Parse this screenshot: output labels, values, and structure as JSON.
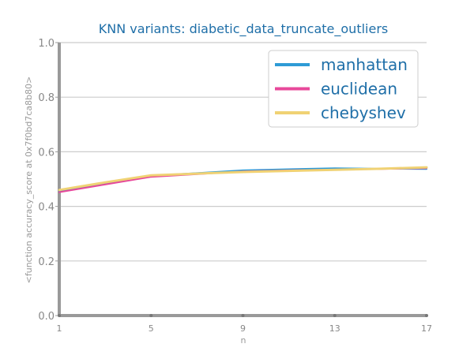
{
  "chart_data": {
    "type": "line",
    "title": "KNN variants: diabetic_data_truncate_outliers",
    "xlabel": "n",
    "ylabel": "<function accuracy_score at 0x7f0bd7ca8b80>",
    "x": [
      1,
      3,
      5,
      7,
      9,
      11,
      13,
      15,
      17
    ],
    "xticks": [
      "1",
      "5",
      "9",
      "13",
      "17"
    ],
    "yticks": [
      "0.0",
      "0.2",
      "0.4",
      "0.6",
      "0.8",
      "1.0"
    ],
    "xlim": [
      1,
      17
    ],
    "ylim": [
      0,
      1
    ],
    "grid": "horizontal",
    "legend_position": "top-right",
    "series": [
      {
        "name": "manhattan",
        "color": "#2e9bd6",
        "values": [
          0.455,
          0.485,
          0.512,
          0.522,
          0.532,
          0.536,
          0.54,
          0.538,
          0.537
        ]
      },
      {
        "name": "euclidean",
        "color": "#e8489a",
        "values": [
          0.452,
          0.48,
          0.508,
          0.518,
          0.528,
          0.532,
          0.535,
          0.537,
          0.54
        ]
      },
      {
        "name": "chebyshev",
        "color": "#f0d274",
        "values": [
          0.46,
          0.488,
          0.514,
          0.52,
          0.526,
          0.53,
          0.534,
          0.538,
          0.543
        ]
      }
    ]
  }
}
